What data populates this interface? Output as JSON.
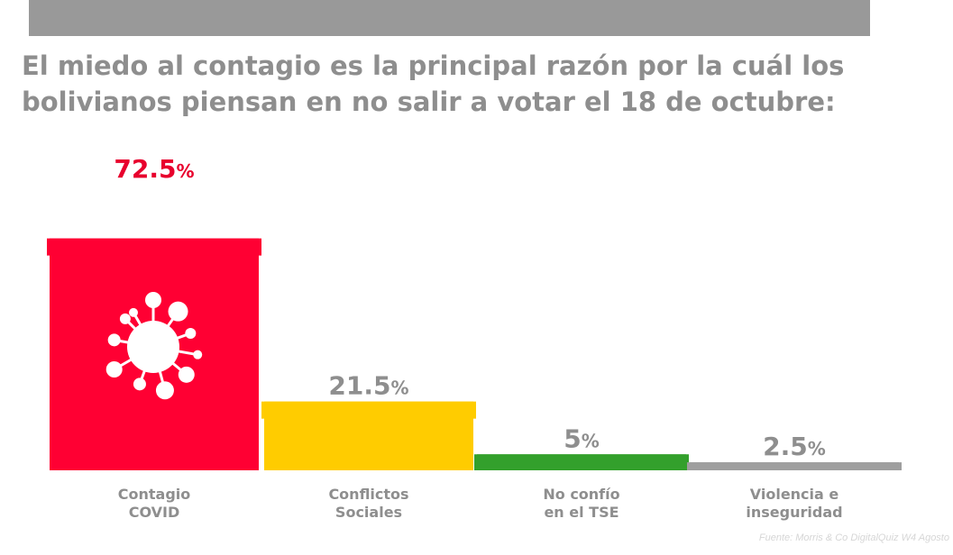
{
  "header": {
    "title_line1": "El miedo al contagio es la principal razón por la cuál los",
    "title_line2": "bolivianos piensan en no salir a votar el 18 de octubre:"
  },
  "source": "Fuente: Morris & Co DigitalQuiz W4 Agosto",
  "chart_data": {
    "type": "bar",
    "categories": [
      [
        "Contagio",
        "COVID"
      ],
      [
        "Conflictos",
        "Sociales"
      ],
      [
        "No confío",
        "en el TSE"
      ],
      [
        "Violencia e",
        "inseguridad"
      ]
    ],
    "values": [
      72.5,
      21.5,
      5,
      2.5
    ],
    "value_labels": [
      "72.5",
      "21.5",
      "5",
      "2.5"
    ],
    "unit": "%",
    "colors": [
      "#ff0033",
      "#ffcc00",
      "#33a02c",
      "#9e9e9e"
    ],
    "label_colors": [
      "#e8002d",
      "#8e8e8e",
      "#8e8e8e",
      "#8e8e8e"
    ],
    "icon": "virus-icon"
  }
}
